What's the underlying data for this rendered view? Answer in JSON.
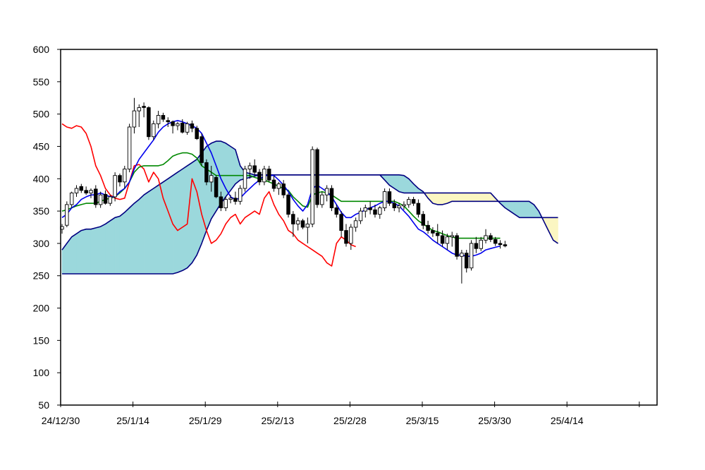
{
  "chart_data": {
    "type": "candlestick-ichimoku",
    "title": "",
    "xlabel": "",
    "ylabel": "",
    "ylim": [
      50,
      600
    ],
    "y_ticks": [
      50,
      100,
      150,
      200,
      250,
      300,
      350,
      400,
      450,
      500,
      550,
      600
    ],
    "x_ticks": [
      "24/12/30",
      "25/1/14",
      "25/1/29",
      "25/2/13",
      "25/2/28",
      "25/3/15",
      "25/3/30",
      "25/4/14"
    ],
    "grid": false,
    "legend": "none",
    "colors": {
      "tenkan": "#0000ee",
      "kijun": "#008800",
      "chikou": "#ff0000",
      "span_outline": "#000080",
      "cloud_bullish": "#9bd8dc",
      "cloud_bearish": "#fbf6c2",
      "candle_up": "#ffffff",
      "candle_down": "#000000"
    },
    "candles": [
      {
        "o": 322,
        "h": 330,
        "l": 315,
        "c": 326
      },
      {
        "o": 328,
        "h": 365,
        "l": 325,
        "c": 360
      },
      {
        "o": 360,
        "h": 380,
        "l": 355,
        "c": 378
      },
      {
        "o": 378,
        "h": 390,
        "l": 372,
        "c": 385
      },
      {
        "o": 388,
        "h": 392,
        "l": 378,
        "c": 382
      },
      {
        "o": 382,
        "h": 388,
        "l": 375,
        "c": 378
      },
      {
        "o": 378,
        "h": 385,
        "l": 370,
        "c": 382
      },
      {
        "o": 384,
        "h": 390,
        "l": 355,
        "c": 360
      },
      {
        "o": 360,
        "h": 380,
        "l": 355,
        "c": 375
      },
      {
        "o": 376,
        "h": 382,
        "l": 360,
        "c": 362
      },
      {
        "o": 362,
        "h": 375,
        "l": 358,
        "c": 372
      },
      {
        "o": 372,
        "h": 410,
        "l": 365,
        "c": 405
      },
      {
        "o": 405,
        "h": 408,
        "l": 388,
        "c": 395
      },
      {
        "o": 395,
        "h": 420,
        "l": 385,
        "c": 415
      },
      {
        "o": 415,
        "h": 485,
        "l": 410,
        "c": 480
      },
      {
        "o": 480,
        "h": 525,
        "l": 470,
        "c": 505
      },
      {
        "o": 505,
        "h": 515,
        "l": 480,
        "c": 510
      },
      {
        "o": 512,
        "h": 518,
        "l": 495,
        "c": 510
      },
      {
        "o": 510,
        "h": 512,
        "l": 460,
        "c": 465
      },
      {
        "o": 465,
        "h": 490,
        "l": 460,
        "c": 485
      },
      {
        "o": 485,
        "h": 505,
        "l": 478,
        "c": 498
      },
      {
        "o": 498,
        "h": 502,
        "l": 488,
        "c": 492
      },
      {
        "o": 490,
        "h": 495,
        "l": 480,
        "c": 488
      },
      {
        "o": 488,
        "h": 490,
        "l": 470,
        "c": 482
      },
      {
        "o": 482,
        "h": 488,
        "l": 475,
        "c": 485
      },
      {
        "o": 486,
        "h": 492,
        "l": 470,
        "c": 472
      },
      {
        "o": 472,
        "h": 488,
        "l": 468,
        "c": 485
      },
      {
        "o": 485,
        "h": 490,
        "l": 472,
        "c": 478
      },
      {
        "o": 478,
        "h": 482,
        "l": 460,
        "c": 462
      },
      {
        "o": 465,
        "h": 470,
        "l": 420,
        "c": 425
      },
      {
        "o": 425,
        "h": 430,
        "l": 390,
        "c": 395
      },
      {
        "o": 395,
        "h": 420,
        "l": 380,
        "c": 405
      },
      {
        "o": 402,
        "h": 405,
        "l": 370,
        "c": 372
      },
      {
        "o": 372,
        "h": 380,
        "l": 350,
        "c": 355
      },
      {
        "o": 355,
        "h": 372,
        "l": 350,
        "c": 368
      },
      {
        "o": 368,
        "h": 375,
        "l": 362,
        "c": 370
      },
      {
        "o": 370,
        "h": 380,
        "l": 360,
        "c": 365
      },
      {
        "o": 365,
        "h": 390,
        "l": 360,
        "c": 385
      },
      {
        "o": 385,
        "h": 420,
        "l": 380,
        "c": 415
      },
      {
        "o": 415,
        "h": 425,
        "l": 400,
        "c": 420
      },
      {
        "o": 420,
        "h": 430,
        "l": 405,
        "c": 410
      },
      {
        "o": 410,
        "h": 415,
        "l": 390,
        "c": 395
      },
      {
        "o": 395,
        "h": 420,
        "l": 390,
        "c": 415
      },
      {
        "o": 415,
        "h": 420,
        "l": 395,
        "c": 398
      },
      {
        "o": 398,
        "h": 405,
        "l": 380,
        "c": 385
      },
      {
        "o": 385,
        "h": 395,
        "l": 375,
        "c": 392
      },
      {
        "o": 392,
        "h": 398,
        "l": 370,
        "c": 375
      },
      {
        "o": 375,
        "h": 378,
        "l": 340,
        "c": 345
      },
      {
        "o": 345,
        "h": 350,
        "l": 310,
        "c": 330
      },
      {
        "o": 330,
        "h": 340,
        "l": 320,
        "c": 335
      },
      {
        "o": 335,
        "h": 338,
        "l": 322,
        "c": 325
      },
      {
        "o": 325,
        "h": 340,
        "l": 300,
        "c": 330
      },
      {
        "o": 330,
        "h": 450,
        "l": 325,
        "c": 445
      },
      {
        "o": 445,
        "h": 448,
        "l": 355,
        "c": 360
      },
      {
        "o": 360,
        "h": 380,
        "l": 355,
        "c": 375
      },
      {
        "o": 375,
        "h": 390,
        "l": 365,
        "c": 385
      },
      {
        "o": 385,
        "h": 390,
        "l": 350,
        "c": 355
      },
      {
        "o": 355,
        "h": 360,
        "l": 340,
        "c": 345
      },
      {
        "o": 345,
        "h": 350,
        "l": 310,
        "c": 320
      },
      {
        "o": 320,
        "h": 330,
        "l": 295,
        "c": 300
      },
      {
        "o": 300,
        "h": 330,
        "l": 290,
        "c": 325
      },
      {
        "o": 325,
        "h": 340,
        "l": 318,
        "c": 335
      },
      {
        "o": 335,
        "h": 355,
        "l": 330,
        "c": 350
      },
      {
        "o": 350,
        "h": 360,
        "l": 340,
        "c": 355
      },
      {
        "o": 355,
        "h": 365,
        "l": 345,
        "c": 352
      },
      {
        "o": 352,
        "h": 360,
        "l": 340,
        "c": 345
      },
      {
        "o": 345,
        "h": 358,
        "l": 338,
        "c": 355
      },
      {
        "o": 355,
        "h": 385,
        "l": 350,
        "c": 380
      },
      {
        "o": 380,
        "h": 385,
        "l": 358,
        "c": 362
      },
      {
        "o": 362,
        "h": 368,
        "l": 350,
        "c": 355
      },
      {
        "o": 355,
        "h": 362,
        "l": 348,
        "c": 358
      },
      {
        "o": 358,
        "h": 365,
        "l": 352,
        "c": 360
      },
      {
        "o": 360,
        "h": 372,
        "l": 355,
        "c": 368
      },
      {
        "o": 368,
        "h": 372,
        "l": 358,
        "c": 362
      },
      {
        "o": 362,
        "h": 368,
        "l": 340,
        "c": 345
      },
      {
        "o": 345,
        "h": 350,
        "l": 322,
        "c": 328
      },
      {
        "o": 328,
        "h": 335,
        "l": 315,
        "c": 320
      },
      {
        "o": 320,
        "h": 325,
        "l": 310,
        "c": 316
      },
      {
        "o": 316,
        "h": 330,
        "l": 300,
        "c": 312
      },
      {
        "o": 312,
        "h": 320,
        "l": 295,
        "c": 300
      },
      {
        "o": 300,
        "h": 315,
        "l": 290,
        "c": 310
      },
      {
        "o": 310,
        "h": 318,
        "l": 295,
        "c": 312
      },
      {
        "o": 312,
        "h": 316,
        "l": 275,
        "c": 280
      },
      {
        "o": 280,
        "h": 290,
        "l": 238,
        "c": 285
      },
      {
        "o": 285,
        "h": 290,
        "l": 255,
        "c": 262
      },
      {
        "o": 262,
        "h": 305,
        "l": 258,
        "c": 300
      },
      {
        "o": 300,
        "h": 310,
        "l": 285,
        "c": 292
      },
      {
        "o": 292,
        "h": 310,
        "l": 288,
        "c": 305
      },
      {
        "o": 305,
        "h": 322,
        "l": 300,
        "c": 312
      },
      {
        "o": 312,
        "h": 316,
        "l": 302,
        "c": 306
      },
      {
        "o": 306,
        "h": 310,
        "l": 296,
        "c": 300
      },
      {
        "o": 300,
        "h": 305,
        "l": 292,
        "c": 298
      },
      {
        "o": 298,
        "h": 304,
        "l": 294,
        "c": 296
      }
    ],
    "tenkan": [
      340,
      345,
      355,
      360,
      368,
      372,
      375,
      375,
      378,
      375,
      372,
      372,
      380,
      385,
      395,
      415,
      430,
      440,
      450,
      460,
      472,
      480,
      485,
      488,
      490,
      488,
      485,
      482,
      478,
      470,
      455,
      440,
      420,
      400,
      385,
      372,
      368,
      370,
      378,
      385,
      392,
      398,
      405,
      405,
      405,
      398,
      390,
      380,
      368,
      358,
      350,
      360,
      385,
      390,
      385,
      380,
      372,
      360,
      348,
      340,
      340,
      345,
      348,
      352,
      355,
      358,
      362,
      365,
      365,
      362,
      358,
      350,
      342,
      332,
      322,
      318,
      312,
      305,
      300,
      295,
      290,
      285,
      282,
      282,
      280,
      280,
      282,
      285,
      290,
      292,
      294,
      296
    ],
    "kijun": [
      350,
      352,
      355,
      358,
      360,
      362,
      362,
      362,
      365,
      368,
      370,
      372,
      378,
      385,
      395,
      410,
      418,
      420,
      420,
      420,
      420,
      422,
      428,
      435,
      438,
      440,
      440,
      438,
      432,
      420,
      415,
      410,
      405,
      405,
      405,
      405,
      405,
      405,
      405,
      405,
      402,
      400,
      398,
      395,
      392,
      388,
      385,
      382,
      372,
      365,
      358,
      356,
      375,
      378,
      380,
      378,
      375,
      370,
      365,
      365,
      365,
      365,
      365,
      365,
      365,
      365,
      365,
      365,
      365,
      365,
      362,
      358,
      350,
      342,
      335,
      330,
      325,
      320,
      318,
      315,
      312,
      310,
      308,
      308,
      308,
      308,
      308,
      308,
      308,
      308,
      308,
      308
    ],
    "chikou": [
      485,
      480,
      478,
      482,
      480,
      470,
      450,
      420,
      405,
      385,
      375,
      370,
      368,
      370,
      395,
      420,
      422,
      415,
      395,
      410,
      400,
      370,
      350,
      330,
      320,
      325,
      330,
      400,
      380,
      345,
      320,
      300,
      305,
      315,
      330,
      340,
      345,
      330,
      340,
      345,
      350,
      345,
      370,
      380,
      360,
      345,
      335,
      320,
      315,
      305,
      300,
      295,
      290,
      285,
      280,
      270,
      265,
      300,
      310,
      305,
      298,
      295
    ],
    "span_a": [
      290,
      300,
      310,
      315,
      320,
      322,
      322,
      324,
      326,
      330,
      335,
      340,
      342,
      348,
      355,
      362,
      368,
      375,
      380,
      385,
      390,
      395,
      400,
      405,
      410,
      415,
      420,
      425,
      430,
      440,
      450,
      455,
      458,
      458,
      455,
      450,
      445,
      420,
      410,
      408,
      406,
      406,
      406,
      406,
      406,
      406,
      406,
      406,
      406,
      406,
      406,
      406,
      406,
      406,
      406,
      406,
      406,
      406,
      406,
      406,
      406,
      406,
      406,
      406,
      406,
      406,
      406,
      406,
      406,
      406,
      406,
      405,
      400,
      392,
      385,
      380,
      370,
      362,
      360,
      360,
      362,
      365,
      365,
      365,
      365,
      365,
      365,
      365,
      365,
      365,
      365,
      365,
      365,
      365,
      365,
      365,
      365,
      365,
      360,
      350,
      335,
      320,
      305,
      300
    ],
    "span_b": [
      253,
      253,
      253,
      253,
      253,
      253,
      253,
      253,
      253,
      253,
      253,
      253,
      253,
      253,
      253,
      253,
      253,
      253,
      253,
      253,
      253,
      253,
      253,
      253,
      255,
      258,
      262,
      270,
      282,
      300,
      320,
      338,
      350,
      362,
      372,
      382,
      392,
      398,
      400,
      402,
      404,
      406,
      406,
      406,
      406,
      406,
      406,
      406,
      406,
      406,
      406,
      406,
      406,
      406,
      406,
      406,
      406,
      406,
      406,
      406,
      406,
      406,
      406,
      406,
      406,
      406,
      406,
      398,
      390,
      385,
      380,
      378,
      378,
      378,
      378,
      378,
      378,
      378,
      378,
      378,
      378,
      378,
      378,
      378,
      378,
      378,
      378,
      378,
      378,
      378,
      370,
      362,
      355,
      350,
      345,
      340,
      340,
      340,
      340,
      340,
      340,
      340,
      340,
      340
    ]
  }
}
